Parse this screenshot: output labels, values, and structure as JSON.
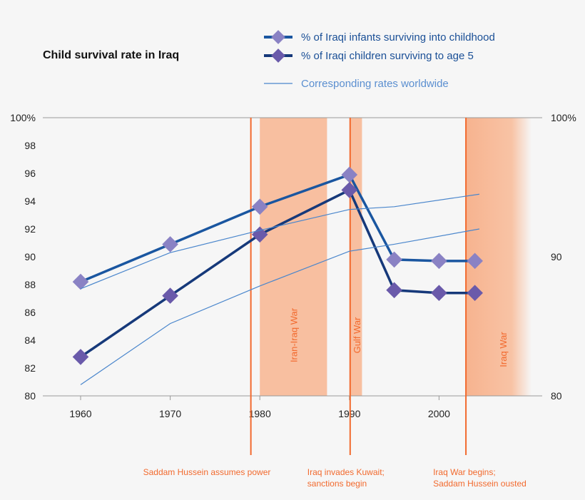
{
  "chart_data": {
    "type": "line",
    "title": "Child survival rate in Iraq",
    "xlabel": "",
    "ylabel": "",
    "ylim": [
      80,
      100
    ],
    "xlim": [
      1956,
      2009
    ],
    "x_ticks": [
      1960,
      1970,
      1980,
      1990,
      2000
    ],
    "y_ticks_left": [
      "80",
      "82",
      "84",
      "86",
      "88",
      "90",
      "92",
      "94",
      "96",
      "98",
      "100%"
    ],
    "y_ticks_right": [
      "80",
      "90",
      "100%"
    ],
    "grid": false,
    "legend_position": "top-right",
    "series": [
      {
        "name": "% of Iraqi infants surviving into childhood",
        "color": "#1a56a0",
        "marker_color": "#8a82c4",
        "x": [
          1960,
          1970,
          1980,
          1990,
          1995,
          2000,
          2004
        ],
        "y": [
          88.2,
          90.9,
          93.6,
          95.9,
          89.8,
          89.7,
          89.7
        ]
      },
      {
        "name": "% of Iraqi children surviving to age 5",
        "color": "#16397a",
        "marker_color": "#6a5aaa",
        "x": [
          1960,
          1970,
          1980,
          1990,
          1995,
          2000,
          2004
        ],
        "y": [
          82.8,
          87.2,
          91.6,
          94.8,
          87.6,
          87.4,
          87.4
        ]
      },
      {
        "name": "Corresponding rates worldwide",
        "color": "#4a86cc",
        "x": [
          1960,
          1970,
          1980,
          1990,
          1995,
          2004.5
        ],
        "y": [
          87.7,
          90.3,
          91.9,
          93.4,
          93.6,
          94.5
        ]
      },
      {
        "name": "",
        "color": "#4a86cc",
        "x": [
          1960,
          1970,
          1980,
          1990,
          1995,
          2004.5
        ],
        "y": [
          80.8,
          85.2,
          87.9,
          90.4,
          90.9,
          92.0
        ]
      }
    ],
    "periods": [
      {
        "label": "Iran-Iraq War",
        "start": 1980,
        "end": 1987.5
      },
      {
        "label": "Gulf War",
        "start": 1990,
        "end": 1991.4
      },
      {
        "label": "Iraq War",
        "start": 2003,
        "end": 2010
      }
    ],
    "events": [
      {
        "x": 1979,
        "label": [
          "Saddam Hussein assumes power"
        ]
      },
      {
        "x": 1990,
        "label": [
          "Iraq invades Kuwait;",
          "sanctions begin"
        ]
      },
      {
        "x": 2003,
        "label": [
          "Iraq War begins;",
          "Saddam Hussein ousted"
        ]
      }
    ],
    "accent_color": "#f26a2e",
    "shade_color": "#f8bfa0"
  }
}
